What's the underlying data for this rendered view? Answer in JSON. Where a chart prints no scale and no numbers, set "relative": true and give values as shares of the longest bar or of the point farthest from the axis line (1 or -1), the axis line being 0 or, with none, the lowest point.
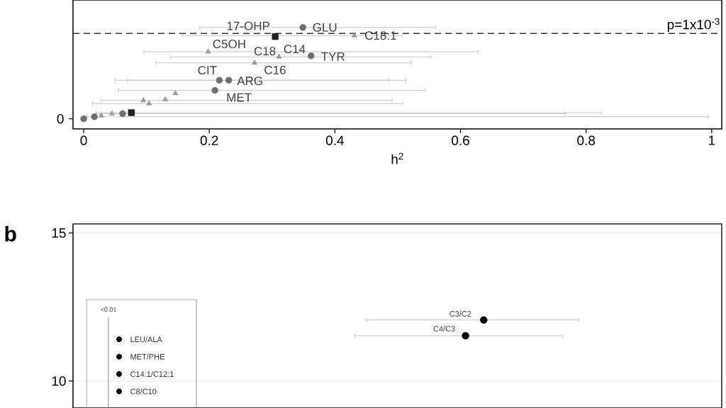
{
  "chart_data": [
    {
      "type": "scatter",
      "relative": true,
      "xlabel": "h$^{2}$",
      "xlim": [
        -0.017,
        1.016
      ],
      "xticks": [
        0,
        0.2,
        0.4,
        0.6,
        0.8,
        1
      ],
      "grid": false,
      "series": [
        {
          "marker": "circle",
          "color": "#6e6e6e",
          "x": [
            0.349,
            0.362,
            0.216,
            0.231,
            0.209,
            0,
            0.017,
            0.062
          ],
          "values": [
            1,
            0.72,
            0.48,
            0.48,
            0.38,
            0.1,
            0.12,
            0.15
          ],
          "xerrors": [
            [
              0.185,
              0.56
            ],
            null,
            [
              0.05,
              0.486
            ],
            [
              0.07,
              0.513
            ],
            [
              0.055,
              0.544
            ],
            null,
            [
              0.005,
              0.995
            ],
            [
              0.02,
              0.767
            ]
          ]
        },
        {
          "marker": "triangle",
          "color": "#9a9a9a",
          "x": [
            0.431,
            0.198,
            0.311,
            0.272,
            0.095,
            0.104,
            0.13,
            0.146,
            0.028,
            0.045
          ],
          "values": [
            0.92,
            0.76,
            0.71,
            0.65,
            0.28,
            0.25,
            0.29,
            0.35,
            0.13,
            0.15
          ],
          "xerrors": [
            [
              0.157,
              0.507
            ],
            [
              0.096,
              0.628
            ],
            [
              0.138,
              0.553
            ],
            [
              0.115,
              0.521
            ],
            [
              0.028,
              0.491
            ],
            [
              0.014,
              0.508
            ],
            null,
            null,
            null,
            null
          ]
        },
        {
          "marker": "square",
          "color": "#202020",
          "x": [
            0.305,
            0.076
          ],
          "values": [
            0.91,
            0.16
          ],
          "xerrors": [
            null,
            [
              0.02,
              0.824
            ]
          ]
        }
      ],
      "ref_lines": [
        {
          "axis": "y",
          "value": 0.94,
          "label": "p=1x10$^{-3}$",
          "line_style": "dashed",
          "color": "#333333"
        }
      ],
      "annotations": [
        {
          "text": "17-OHP",
          "x": 0.305,
          "y": 0.91
        },
        {
          "text": "GLU",
          "x": 0.349,
          "y": 1
        },
        {
          "text": "C18:1",
          "x": 0.431,
          "y": 0.92
        },
        {
          "text": "C5OH",
          "x": 0.198,
          "y": 0.76
        },
        {
          "text": "C18",
          "x": 0.311,
          "y": 0.71
        },
        {
          "text": "C14",
          "x": 0.311,
          "y": 0.71
        },
        {
          "text": "TYR",
          "x": 0.362,
          "y": 0.72
        },
        {
          "text": "C16",
          "x": 0.272,
          "y": 0.65
        },
        {
          "text": "CIT",
          "x": 0.216,
          "y": 0.48
        },
        {
          "text": "ARG",
          "x": 0.231,
          "y": 0.48
        },
        {
          "text": "MET",
          "x": 0.209,
          "y": 0.38
        },
        "0"
      ]
    },
    {
      "type": "scatter",
      "title": "b",
      "xlim": [
        -0.017,
        1.016
      ],
      "ylim": [
        9.09,
        15.31
      ],
      "yticks": [
        10,
        15
      ],
      "tick_labels": "y",
      "grid": "y",
      "series": [
        {
          "marker": "circle",
          "color": "#000000",
          "x": [
            0.637,
            0.608
          ],
          "values": [
            12.06,
            11.53
          ],
          "xerrors": [
            [
              0.45,
              0.789
            ],
            [
              0.432,
              0.762
            ]
          ]
        }
      ],
      "annotations": [
        {
          "text": "C3/C2",
          "x": 0.637,
          "y": 12.06
        },
        {
          "text": "C4/C3",
          "x": 0.608,
          "y": 11.53
        },
        "<0.01",
        "LEU/ALA",
        "MET/PHE",
        "C14:1/C12:1",
        "C8/C10"
      ]
    }
  ]
}
